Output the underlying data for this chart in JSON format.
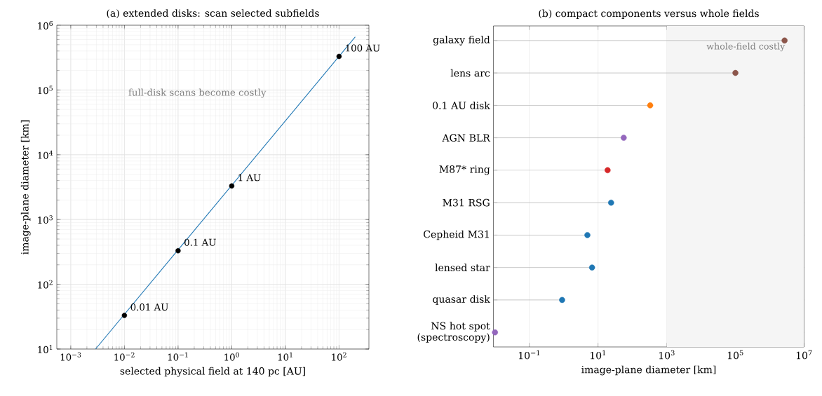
{
  "chart_data": [
    {
      "type": "line",
      "title": "(a) extended disks: scan selected subfields",
      "xlabel": "selected physical field at 140 pc [AU]",
      "ylabel": "image-plane diameter [km]",
      "log": "xy",
      "grid": true,
      "xlim": [
        0.00055,
        360
      ],
      "ylim": [
        10,
        1000000
      ],
      "xticks": [
        {
          "value": 0.001,
          "label": "10$^{−3}$"
        },
        {
          "value": 0.01,
          "label": "10$^{−2}$"
        },
        {
          "value": 0.1,
          "label": "10$^{−1}$"
        },
        {
          "value": 1,
          "label": "10$^{0}$"
        },
        {
          "value": 10,
          "label": "10$^{1}$"
        },
        {
          "value": 100,
          "label": "10$^{2}$"
        }
      ],
      "yticks": [
        {
          "value": 10,
          "label": "10$^{1}$"
        },
        {
          "value": 100,
          "label": "10$^{2}$"
        },
        {
          "value": 1000,
          "label": "10$^{3}$"
        },
        {
          "value": 10000,
          "label": "10$^{4}$"
        },
        {
          "value": 100000,
          "label": "10$^{5}$"
        },
        {
          "value": 1000000,
          "label": "10$^{6}$"
        }
      ],
      "series": [
        {
          "type": "line",
          "color": "#1f77b4",
          "x": [
            0.0029,
            200
          ],
          "values": [
            10,
            660000
          ]
        },
        {
          "type": "scatter",
          "color": "#000000",
          "marker": "circle",
          "x": [
            0.01,
            0.1,
            1,
            100
          ],
          "values": [
            33,
            330,
            3300,
            330000
          ]
        }
      ],
      "annotations": [
        "full-disk scans become costly",
        {
          "text": "0.01 AU",
          "x": 0.01,
          "y": 33
        },
        {
          "text": "0.1 AU",
          "x": 0.1,
          "y": 330
        },
        {
          "text": "1 AU",
          "x": 1,
          "y": 3300
        },
        {
          "text": "100 AU",
          "x": 100,
          "y": 330000
        }
      ]
    },
    {
      "type": "lollipop",
      "title": "(b) compact components versus whole fields",
      "xlabel": "image-plane diameter [km]",
      "orientation": "horizontal",
      "log": "x",
      "grid": "x",
      "marker": "circle",
      "categories": [
        "galaxy field",
        "lens arc",
        "0.1 AU disk",
        "AGN BLR",
        "M87* ring",
        "M31 RSG",
        "Cepheid M31",
        "lensed star",
        "quasar disk",
        "NS hot spot (spectroscopy)"
      ],
      "values": [
        2700000,
        100000,
        330,
        56,
        19,
        24,
        4.9,
        6.7,
        0.9,
        0.01
      ],
      "colors": [
        "#8c564b",
        "#8c564b",
        "#ff7f0e",
        "#9467bd",
        "#d62728",
        "#1f77b4",
        "#1f77b4",
        "#1f77b4",
        "#1f77b4",
        "#9467bd"
      ],
      "xlim": [
        0.009,
        10000000
      ],
      "xticks": [
        {
          "value": 0.1,
          "label": "10$^{−1}$"
        },
        {
          "value": 10,
          "label": "10$^{1}$"
        },
        {
          "value": 1000,
          "label": "10$^{3}$"
        },
        {
          "value": 100000,
          "label": "10$^{5}$"
        },
        {
          "value": 10000000,
          "label": "10$^{7}$"
        }
      ],
      "bands": [
        {
          "axis": "x",
          "from": 1000,
          "to": 10000000,
          "label": "whole-field costly",
          "color": "#f5f5f5"
        }
      ]
    }
  ]
}
